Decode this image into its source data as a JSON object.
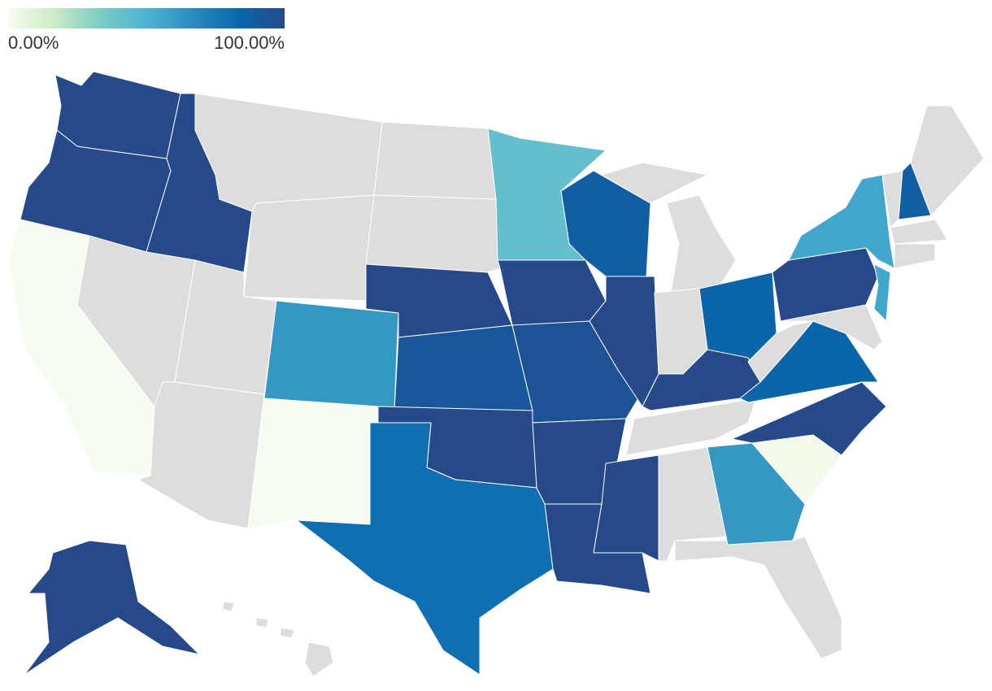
{
  "chart_data": {
    "type": "choropleth",
    "range": [
      0,
      100
    ],
    "ticks": [
      {
        "value": 0,
        "label": "0.00%"
      },
      {
        "value": 100,
        "label": "100.00%"
      }
    ],
    "colorscale": [
      "#f7fcf0",
      "#ccebc5",
      "#7bccc4",
      "#4eb3d3",
      "#2b8cbe",
      "#0868ac",
      "#26498a"
    ],
    "missing_color": "#dddddd",
    "values": [
      100,
      100,
      0,
      100,
      null,
      null,
      null,
      null,
      null,
      62,
      0,
      null,
      null,
      100,
      92,
      100,
      80,
      42,
      100,
      95,
      100,
      100,
      88,
      100,
      null,
      null,
      null,
      85,
      100,
      null,
      100,
      null,
      62,
      null,
      2,
      100,
      85,
      null,
      100,
      55,
      55,
      null,
      null,
      88,
      null,
      null,
      null,
      100,
      null,
      null,
      null,
      null
    ]
  }
}
